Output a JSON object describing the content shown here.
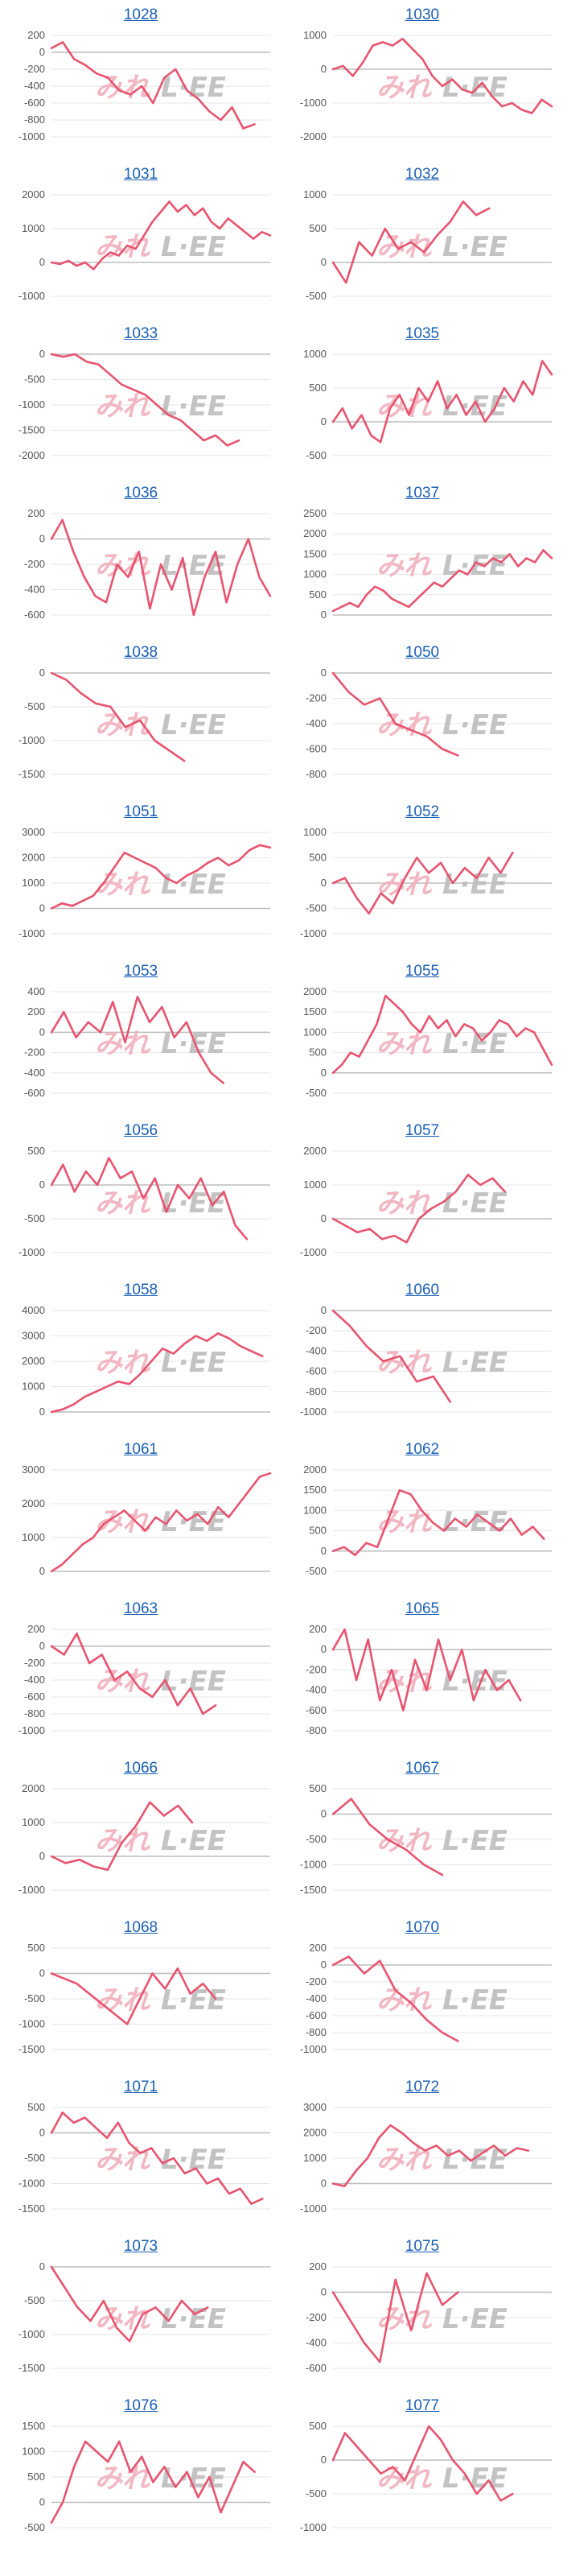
{
  "colors": {
    "line": "#e8546f",
    "grid": "#e6e6e6",
    "zero_axis": "#bdbdbd",
    "title": "#1a5fb4",
    "watermark_a": "#f1b0bc",
    "watermark_b": "#bdbdbd"
  },
  "watermark": {
    "part_a": "みれ",
    "part_b": "L·EE"
  },
  "chart_data": [
    {
      "type": "line",
      "title": "1028",
      "yticks": [
        200,
        0,
        -200,
        -400,
        -600,
        -800,
        -1000
      ],
      "ylim": [
        -1000,
        200
      ],
      "values": [
        50,
        120,
        -80,
        -150,
        -250,
        -300,
        -450,
        -500,
        -400,
        -600,
        -300,
        -200,
        -450,
        -550,
        -700,
        -800,
        -650,
        -900,
        -850
      ]
    },
    {
      "type": "line",
      "title": "1030",
      "yticks": [
        1000,
        0,
        -1000,
        -2000
      ],
      "ylim": [
        -2000,
        1000
      ],
      "values": [
        0,
        100,
        -200,
        200,
        700,
        800,
        700,
        900,
        600,
        300,
        -200,
        -500,
        -300,
        -600,
        -700,
        -400,
        -800,
        -1100,
        -1000,
        -1200,
        -1300,
        -900,
        -1100
      ]
    },
    {
      "type": "line",
      "title": "1031",
      "yticks": [
        2000,
        1000,
        0,
        -1000
      ],
      "ylim": [
        -1000,
        2000
      ],
      "values": [
        0,
        -50,
        50,
        -100,
        0,
        -200,
        100,
        300,
        200,
        500,
        400,
        800,
        1200,
        1500,
        1800,
        1500,
        1700,
        1400,
        1600,
        1200,
        1000,
        1300,
        1100,
        900,
        700,
        900,
        800
      ]
    },
    {
      "type": "line",
      "title": "1032",
      "yticks": [
        1000,
        500,
        0,
        -500
      ],
      "ylim": [
        -500,
        1000
      ],
      "values": [
        0,
        -300,
        300,
        100,
        500,
        200,
        300,
        150,
        400,
        600,
        900,
        700,
        800
      ]
    },
    {
      "type": "line",
      "title": "1033",
      "yticks": [
        0,
        -500,
        -1000,
        -1500,
        -2000
      ],
      "ylim": [
        -2000,
        0
      ],
      "values": [
        0,
        -50,
        0,
        -150,
        -200,
        -400,
        -600,
        -700,
        -800,
        -1000,
        -1200,
        -1300,
        -1500,
        -1700,
        -1600,
        -1800,
        -1700
      ]
    },
    {
      "type": "line",
      "title": "1035",
      "yticks": [
        1000,
        500,
        0,
        -500
      ],
      "ylim": [
        -500,
        1000
      ],
      "values": [
        0,
        200,
        -100,
        100,
        -200,
        -300,
        200,
        400,
        100,
        500,
        300,
        600,
        200,
        400,
        100,
        300,
        0,
        200,
        500,
        300,
        600,
        400,
        900,
        700
      ]
    },
    {
      "type": "line",
      "title": "1036",
      "yticks": [
        200,
        0,
        -200,
        -400,
        -600
      ],
      "ylim": [
        -600,
        200
      ],
      "values": [
        0,
        150,
        -100,
        -300,
        -450,
        -500,
        -200,
        -300,
        -100,
        -550,
        -200,
        -400,
        -150,
        -600,
        -300,
        -100,
        -500,
        -200,
        0,
        -300,
        -450
      ]
    },
    {
      "type": "line",
      "title": "1037",
      "yticks": [
        2500,
        2000,
        1500,
        1000,
        500,
        0
      ],
      "ylim": [
        0,
        2500
      ],
      "values": [
        100,
        200,
        300,
        200,
        500,
        700,
        600,
        400,
        300,
        200,
        400,
        600,
        800,
        700,
        900,
        1100,
        1000,
        1300,
        1200,
        1400,
        1300,
        1500,
        1200,
        1400,
        1300,
        1600,
        1400
      ]
    },
    {
      "type": "line",
      "title": "1038",
      "yticks": [
        0,
        -500,
        -1000,
        -1500
      ],
      "ylim": [
        -1500,
        0
      ],
      "values": [
        0,
        -100,
        -300,
        -450,
        -500,
        -800,
        -700,
        -1000,
        -1150,
        -1300
      ]
    },
    {
      "type": "line",
      "title": "1050",
      "yticks": [
        0,
        -200,
        -400,
        -600,
        -800
      ],
      "ylim": [
        -800,
        0
      ],
      "values": [
        0,
        -150,
        -250,
        -200,
        -400,
        -450,
        -500,
        -600,
        -650
      ]
    },
    {
      "type": "line",
      "title": "1051",
      "yticks": [
        3000,
        2000,
        1000,
        0,
        -1000
      ],
      "ylim": [
        -1000,
        3000
      ],
      "values": [
        0,
        200,
        100,
        300,
        500,
        1000,
        1600,
        2200,
        2000,
        1800,
        1600,
        1200,
        1000,
        1300,
        1500,
        1800,
        2000,
        1700,
        1900,
        2300,
        2500,
        2400
      ]
    },
    {
      "type": "line",
      "title": "1052",
      "yticks": [
        1000,
        500,
        0,
        -500,
        -1000
      ],
      "ylim": [
        -1000,
        1000
      ],
      "values": [
        0,
        100,
        -300,
        -600,
        -200,
        -400,
        100,
        500,
        200,
        400,
        0,
        300,
        100,
        500,
        200,
        600
      ]
    },
    {
      "type": "line",
      "title": "1053",
      "yticks": [
        400,
        200,
        0,
        -200,
        -400,
        -600
      ],
      "ylim": [
        -600,
        400
      ],
      "values": [
        0,
        200,
        -50,
        100,
        0,
        300,
        -100,
        350,
        100,
        250,
        -50,
        100,
        -200,
        -400,
        -500
      ]
    },
    {
      "type": "line",
      "title": "1055",
      "yticks": [
        2000,
        1500,
        1000,
        500,
        0,
        -500
      ],
      "ylim": [
        -500,
        2000
      ],
      "values": [
        0,
        200,
        500,
        400,
        800,
        1200,
        1900,
        1700,
        1500,
        1200,
        1000,
        1400,
        1100,
        1300,
        900,
        1200,
        1100,
        800,
        1000,
        1300,
        1200,
        900,
        1100,
        1000,
        600,
        200
      ]
    },
    {
      "type": "line",
      "title": "1056",
      "yticks": [
        500,
        0,
        -500,
        -1000
      ],
      "ylim": [
        -1000,
        500
      ],
      "values": [
        0,
        300,
        -100,
        200,
        0,
        400,
        100,
        200,
        -200,
        100,
        -400,
        0,
        -200,
        100,
        -300,
        -100,
        -600,
        -800
      ]
    },
    {
      "type": "line",
      "title": "1057",
      "yticks": [
        2000,
        1000,
        0,
        -1000
      ],
      "ylim": [
        -1000,
        2000
      ],
      "values": [
        0,
        -200,
        -400,
        -300,
        -600,
        -500,
        -700,
        0,
        300,
        500,
        800,
        1300,
        1000,
        1200,
        800
      ]
    },
    {
      "type": "line",
      "title": "1058",
      "yticks": [
        4000,
        3000,
        2000,
        1000,
        0
      ],
      "ylim": [
        0,
        4000
      ],
      "values": [
        0,
        100,
        300,
        600,
        800,
        1000,
        1200,
        1100,
        1500,
        2000,
        2500,
        2300,
        2700,
        3000,
        2800,
        3100,
        2900,
        2600,
        2400,
        2200
      ]
    },
    {
      "type": "line",
      "title": "1060",
      "yticks": [
        0,
        -200,
        -400,
        -600,
        -800,
        -1000
      ],
      "ylim": [
        -1000,
        0
      ],
      "values": [
        0,
        -150,
        -350,
        -500,
        -450,
        -700,
        -650,
        -900
      ]
    },
    {
      "type": "line",
      "title": "1061",
      "yticks": [
        3000,
        2000,
        1000,
        0
      ],
      "ylim": [
        0,
        3000
      ],
      "values": [
        0,
        200,
        500,
        800,
        1000,
        1400,
        1600,
        1800,
        1500,
        1200,
        1600,
        1400,
        1800,
        1500,
        1700,
        1400,
        1900,
        1600,
        2000,
        2400,
        2800,
        2900
      ]
    },
    {
      "type": "line",
      "title": "1062",
      "yticks": [
        2000,
        1500,
        1000,
        500,
        0,
        -500
      ],
      "ylim": [
        -500,
        2000
      ],
      "values": [
        0,
        100,
        -100,
        200,
        100,
        800,
        1500,
        1400,
        1000,
        700,
        500,
        800,
        600,
        900,
        700,
        500,
        800,
        400,
        600,
        300
      ]
    },
    {
      "type": "line",
      "title": "1063",
      "yticks": [
        200,
        0,
        -200,
        -400,
        -600,
        -800,
        -1000
      ],
      "ylim": [
        -1000,
        200
      ],
      "values": [
        0,
        -100,
        150,
        -200,
        -100,
        -400,
        -300,
        -500,
        -600,
        -400,
        -700,
        -500,
        -800,
        -700
      ]
    },
    {
      "type": "line",
      "title": "1065",
      "yticks": [
        200,
        0,
        -200,
        -400,
        -600,
        -800
      ],
      "ylim": [
        -800,
        200
      ],
      "values": [
        0,
        200,
        -300,
        100,
        -500,
        -200,
        -600,
        -100,
        -400,
        100,
        -300,
        0,
        -500,
        -200,
        -400,
        -300,
        -500
      ]
    },
    {
      "type": "line",
      "title": "1066",
      "yticks": [
        2000,
        1000,
        0,
        -1000
      ],
      "ylim": [
        -1000,
        2000
      ],
      "values": [
        0,
        -200,
        -100,
        -300,
        -400,
        400,
        900,
        1600,
        1200,
        1500,
        1000
      ]
    },
    {
      "type": "line",
      "title": "1067",
      "yticks": [
        500,
        0,
        -500,
        -1000,
        -1500
      ],
      "ylim": [
        -1500,
        500
      ],
      "values": [
        0,
        300,
        -200,
        -500,
        -700,
        -1000,
        -1200
      ]
    },
    {
      "type": "line",
      "title": "1068",
      "yticks": [
        500,
        0,
        -500,
        -1000,
        -1500
      ],
      "ylim": [
        -1500,
        500
      ],
      "values": [
        0,
        -100,
        -200,
        -400,
        -600,
        -800,
        -1000,
        -500,
        0,
        -300,
        100,
        -400,
        -200,
        -500
      ]
    },
    {
      "type": "line",
      "title": "1070",
      "yticks": [
        200,
        0,
        -200,
        -400,
        -600,
        -800,
        -1000
      ],
      "ylim": [
        -1000,
        200
      ],
      "values": [
        0,
        100,
        -100,
        50,
        -300,
        -450,
        -650,
        -800,
        -900
      ]
    },
    {
      "type": "line",
      "title": "1071",
      "yticks": [
        500,
        0,
        -500,
        -1000,
        -1500
      ],
      "ylim": [
        -1500,
        500
      ],
      "values": [
        0,
        400,
        200,
        300,
        100,
        -100,
        200,
        -200,
        -400,
        -300,
        -600,
        -500,
        -800,
        -700,
        -1000,
        -900,
        -1200,
        -1100,
        -1400,
        -1300
      ]
    },
    {
      "type": "line",
      "title": "1072",
      "yticks": [
        3000,
        2000,
        1000,
        0,
        -1000
      ],
      "ylim": [
        -1000,
        3000
      ],
      "values": [
        0,
        -100,
        500,
        1000,
        1800,
        2300,
        2000,
        1600,
        1300,
        1500,
        1100,
        1300,
        900,
        1200,
        1500,
        1100,
        1400,
        1300
      ]
    },
    {
      "type": "line",
      "title": "1073",
      "yticks": [
        0,
        -500,
        -1000,
        -1500
      ],
      "ylim": [
        -1500,
        0
      ],
      "values": [
        0,
        -300,
        -600,
        -800,
        -500,
        -900,
        -1100,
        -700,
        -600,
        -800,
        -500,
        -700,
        -600
      ]
    },
    {
      "type": "line",
      "title": "1075",
      "yticks": [
        200,
        0,
        -200,
        -400,
        -600
      ],
      "ylim": [
        -600,
        200
      ],
      "values": [
        0,
        -200,
        -400,
        -550,
        100,
        -300,
        150,
        -100,
        0
      ]
    },
    {
      "type": "line",
      "title": "1076",
      "yticks": [
        1500,
        1000,
        500,
        0,
        -500
      ],
      "ylim": [
        -500,
        1500
      ],
      "values": [
        -400,
        0,
        700,
        1200,
        1000,
        800,
        1200,
        600,
        900,
        400,
        700,
        300,
        600,
        100,
        500,
        -200,
        300,
        800,
        600
      ]
    },
    {
      "type": "line",
      "title": "1077",
      "yticks": [
        500,
        0,
        -500,
        -1000
      ],
      "ylim": [
        -1000,
        500
      ],
      "values": [
        0,
        400,
        200,
        0,
        -200,
        -100,
        -300,
        100,
        500,
        300,
        0,
        -200,
        -500,
        -300,
        -600,
        -500
      ]
    }
  ]
}
